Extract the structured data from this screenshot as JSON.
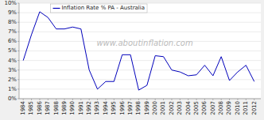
{
  "chart_data": {
    "type": "line",
    "x": [
      1984,
      1985,
      1986,
      1987,
      1988,
      1989,
      1990,
      1991,
      1992,
      1993,
      1994,
      1995,
      1996,
      1997,
      1998,
      1999,
      2000,
      2001,
      2002,
      2003,
      2004,
      2005,
      2006,
      2007,
      2008,
      2009,
      2010,
      2011,
      2012
    ],
    "series": [
      {
        "name": "Inflation Rate % PA - Australia",
        "color": "#0000bb",
        "values": [
          4.0,
          6.7,
          9.1,
          8.5,
          7.3,
          7.3,
          7.5,
          7.3,
          3.0,
          1.0,
          1.8,
          1.8,
          4.6,
          4.6,
          0.9,
          1.4,
          4.5,
          4.4,
          3.0,
          2.8,
          2.4,
          2.5,
          3.5,
          2.4,
          4.4,
          1.9,
          2.8,
          3.5,
          1.8
        ]
      }
    ],
    "xlim": [
      1983.5,
      2012.8
    ],
    "xticks": [
      1984,
      1985,
      1986,
      1987,
      1988,
      1989,
      1990,
      1991,
      1992,
      1993,
      1994,
      1995,
      1996,
      1997,
      1998,
      1999,
      2000,
      2001,
      2002,
      2003,
      2004,
      2005,
      2006,
      2007,
      2008,
      2009,
      2010,
      2011,
      2012
    ],
    "ylim": [
      0,
      10
    ],
    "yticks": [
      {
        "value": 0,
        "label": "0%"
      },
      {
        "value": 1,
        "label": "1%"
      },
      {
        "value": 2,
        "label": "2%"
      },
      {
        "value": 3,
        "label": "3%"
      },
      {
        "value": 4,
        "label": "4%"
      },
      {
        "value": 5,
        "label": "5%"
      },
      {
        "value": 6,
        "label": "6%"
      },
      {
        "value": 7,
        "label": "7%"
      },
      {
        "value": 8,
        "label": "8%"
      },
      {
        "value": 9,
        "label": "9%"
      },
      {
        "value": 10,
        "label": "10%"
      }
    ],
    "grid": true,
    "legend": "upper left",
    "annotations": [
      "www.aboutinflation.com"
    ]
  }
}
